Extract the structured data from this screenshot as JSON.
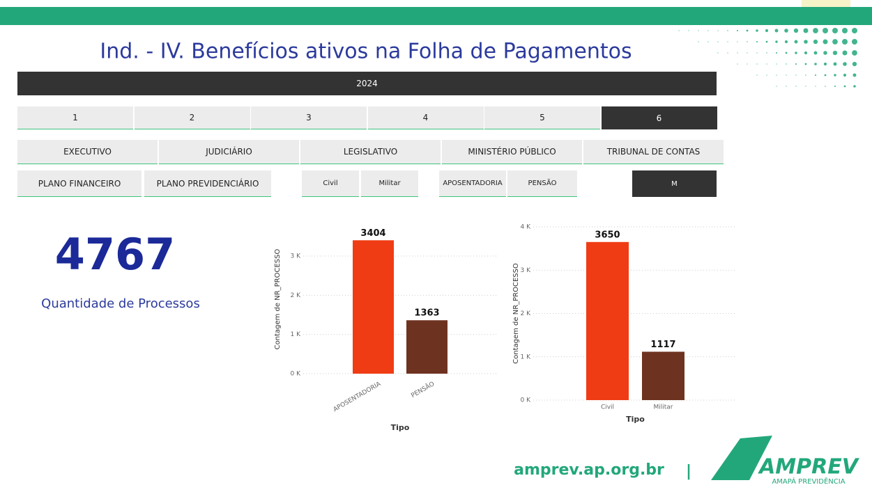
{
  "header": {
    "title": "Ind. - IV. Benefícios ativos na Folha de Pagamentos"
  },
  "slicers": {
    "year": [
      {
        "label": "2024",
        "selected": true
      }
    ],
    "months": [
      {
        "label": "1",
        "selected": false
      },
      {
        "label": "2",
        "selected": false
      },
      {
        "label": "3",
        "selected": false
      },
      {
        "label": "4",
        "selected": false
      },
      {
        "label": "5",
        "selected": false
      },
      {
        "label": "6",
        "selected": true
      }
    ],
    "powers": [
      {
        "label": "EXECUTIVO",
        "selected": false
      },
      {
        "label": "JUDICIÁRIO",
        "selected": false
      },
      {
        "label": "LEGISLATIVO",
        "selected": false
      },
      {
        "label": "MINISTÉRIO PÚBLICO",
        "selected": false
      },
      {
        "label": "TRIBUNAL DE CONTAS",
        "selected": false
      }
    ],
    "plans": [
      {
        "label": "PLANO FINANCEIRO",
        "selected": false
      },
      {
        "label": "PLANO PREVIDENCIÁRIO",
        "selected": false
      }
    ],
    "careers": [
      {
        "label": "Civil",
        "selected": false
      },
      {
        "label": "Militar",
        "selected": false
      }
    ],
    "types": [
      {
        "label": "APOSENTADORIA",
        "selected": false
      },
      {
        "label": "PENSÃO",
        "selected": false
      }
    ],
    "gender": [
      {
        "label": "M",
        "selected": true
      }
    ]
  },
  "kpi": {
    "value": 4767,
    "label": "Quantidade de Processos"
  },
  "chart_data": [
    {
      "type": "bar",
      "x_label": "Tipo",
      "y_label": "Contagem de NR_PROCESSO",
      "categories": [
        "APOSENTADORIA",
        "PENSÃO"
      ],
      "values": [
        3404,
        1363
      ],
      "colors": [
        "#f03c14",
        "#6e3320"
      ],
      "ylim": [
        0,
        3800
      ],
      "yticks": [
        {
          "value": 0,
          "label": "0 K"
        },
        {
          "value": 1000,
          "label": "1 K"
        },
        {
          "value": 2000,
          "label": "2 K"
        },
        {
          "value": 3000,
          "label": "3 K"
        }
      ],
      "grid": true,
      "rotated_labels": true
    },
    {
      "type": "bar",
      "x_label": "Tipo",
      "y_label": "Contagem de NR_PROCESSO",
      "categories": [
        "Civil",
        "Militar"
      ],
      "values": [
        3650,
        1117
      ],
      "colors": [
        "#f03c14",
        "#6e3320"
      ],
      "ylim": [
        0,
        4000
      ],
      "yticks": [
        {
          "value": 0,
          "label": "0 K"
        },
        {
          "value": 1000,
          "label": "1 K"
        },
        {
          "value": 2000,
          "label": "2 K"
        },
        {
          "value": 3000,
          "label": "3 K"
        },
        {
          "value": 4000,
          "label": "4 K"
        }
      ],
      "grid": true,
      "rotated_labels": false
    }
  ],
  "footer": {
    "site": "amprev.ap.org.br",
    "separator": "|",
    "logo": "AMPREV",
    "logo_sub": "AMAPÁ PREVIDÊNCIA"
  }
}
